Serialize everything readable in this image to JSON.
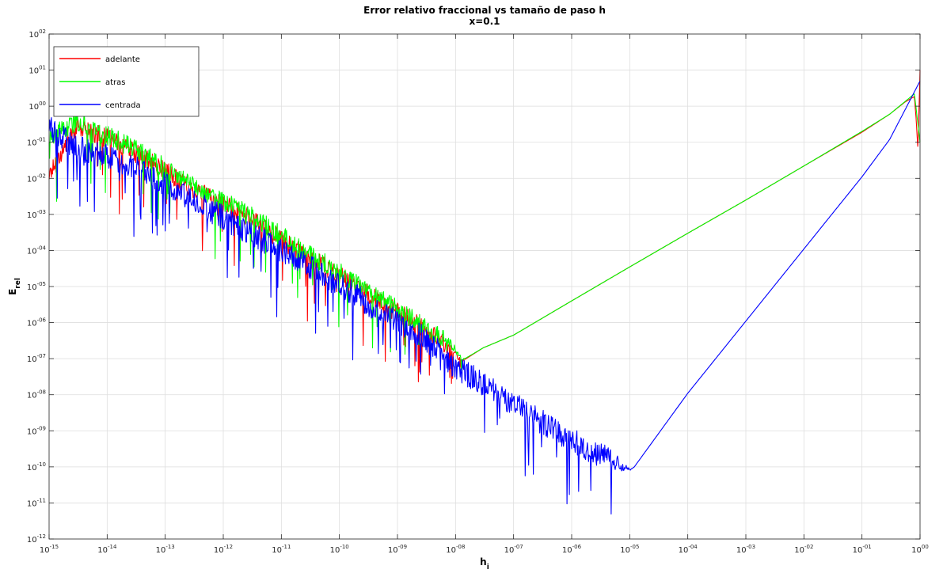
{
  "chart_data": {
    "type": "line",
    "title": "Error relativo fraccional vs tamaño de paso h",
    "subtitle": "x=0.1",
    "xlabel": "h",
    "xlabel_subscript": "i",
    "ylabel": "E",
    "ylabel_subscript": "rel",
    "xscale": "log",
    "yscale": "log",
    "xlim": [
      1e-15,
      1
    ],
    "ylim": [
      1e-12,
      100
    ],
    "grid": true,
    "legend_position": "top-left",
    "x_ticks": [
      {
        "base": "10",
        "exp": "-15"
      },
      {
        "base": "10",
        "exp": "-14"
      },
      {
        "base": "10",
        "exp": "-13"
      },
      {
        "base": "10",
        "exp": "-12"
      },
      {
        "base": "10",
        "exp": "-11"
      },
      {
        "base": "10",
        "exp": "-10"
      },
      {
        "base": "10",
        "exp": "-09"
      },
      {
        "base": "10",
        "exp": "-08"
      },
      {
        "base": "10",
        "exp": "-07"
      },
      {
        "base": "10",
        "exp": "-06"
      },
      {
        "base": "10",
        "exp": "-05"
      },
      {
        "base": "10",
        "exp": "-04"
      },
      {
        "base": "10",
        "exp": "-03"
      },
      {
        "base": "10",
        "exp": "-02"
      },
      {
        "base": "10",
        "exp": "-01"
      },
      {
        "base": "10",
        "exp": "00"
      }
    ],
    "y_ticks": [
      {
        "base": "10",
        "exp": "-12"
      },
      {
        "base": "10",
        "exp": "-11"
      },
      {
        "base": "10",
        "exp": "-10"
      },
      {
        "base": "10",
        "exp": "-09"
      },
      {
        "base": "10",
        "exp": "-08"
      },
      {
        "base": "10",
        "exp": "-07"
      },
      {
        "base": "10",
        "exp": "-06"
      },
      {
        "base": "10",
        "exp": "-05"
      },
      {
        "base": "10",
        "exp": "-04"
      },
      {
        "base": "10",
        "exp": "-03"
      },
      {
        "base": "10",
        "exp": "-02"
      },
      {
        "base": "10",
        "exp": "-01"
      },
      {
        "base": "10",
        "exp": "00"
      },
      {
        "base": "10",
        "exp": "01"
      },
      {
        "base": "10",
        "exp": "02"
      }
    ],
    "series": [
      {
        "name": "adelante",
        "color": "#ff0000",
        "x": [
          1e-15,
          3e-15,
          1e-14,
          3e-14,
          1e-13,
          3e-13,
          1e-12,
          3e-12,
          1e-11,
          3e-11,
          1e-10,
          3e-10,
          1e-09,
          3e-09,
          1e-08,
          1.3e-08,
          3e-08,
          1e-07,
          1e-06,
          1e-05,
          0.0001,
          0.001,
          0.01,
          0.1,
          0.3,
          0.55,
          0.8,
          0.86,
          0.92,
          1
        ],
        "y": [
          0.01,
          0.2,
          0.1,
          0.04,
          0.012,
          0.004,
          0.0015,
          0.0006,
          0.00015,
          5e-05,
          1.5e-05,
          5e-06,
          1.5e-06,
          5e-07,
          1.2e-07,
          8.5e-08,
          2e-07,
          4.5e-07,
          4e-06,
          3.5e-05,
          0.0003,
          0.0025,
          0.022,
          0.19,
          0.6,
          1.3,
          1.85,
          0.4,
          0.06,
          10
        ]
      },
      {
        "name": "atras",
        "color": "#00ff00",
        "x": [
          1e-15,
          3e-15,
          1e-14,
          3e-14,
          1e-13,
          3e-13,
          1e-12,
          3e-12,
          1e-11,
          3e-11,
          1e-10,
          3e-10,
          1e-09,
          3e-09,
          1e-08,
          1.3e-08,
          3e-08,
          1e-07,
          1e-06,
          1e-05,
          0.0001,
          0.001,
          0.01,
          0.1,
          0.3,
          0.8,
          1
        ],
        "y": [
          0.1,
          0.3,
          0.12,
          0.05,
          0.015,
          0.005,
          0.0018,
          0.0007,
          0.0002,
          6e-05,
          2e-05,
          6e-06,
          1.8e-06,
          6e-07,
          1.5e-07,
          9e-08,
          2e-07,
          4.5e-07,
          4e-06,
          3.5e-05,
          0.0003,
          0.0025,
          0.022,
          0.2,
          0.6,
          2.2,
          0.1
        ]
      },
      {
        "name": "centrada",
        "color": "#0000ff",
        "x": [
          1e-15,
          3e-15,
          1e-14,
          3e-14,
          1e-13,
          3e-13,
          1e-12,
          3e-12,
          1e-11,
          3e-11,
          1e-10,
          3e-10,
          1e-09,
          3e-09,
          1e-08,
          3e-08,
          1e-07,
          3e-07,
          1e-06,
          3e-06,
          1e-05,
          1.2e-05,
          0.0001,
          0.001,
          0.01,
          0.1,
          0.3,
          1
        ],
        "y": [
          0.2,
          0.05,
          0.03,
          0.015,
          0.005,
          0.0017,
          0.0006,
          0.0002,
          7e-05,
          2.5e-05,
          8e-06,
          2.5e-06,
          8e-07,
          2.5e-07,
          4e-08,
          1.5e-08,
          4e-09,
          1.3e-09,
          4e-10,
          1.5e-10,
          8e-11,
          1e-10,
          1.1e-08,
          1.1e-06,
          0.00011,
          0.011,
          0.12,
          5
        ]
      }
    ]
  }
}
